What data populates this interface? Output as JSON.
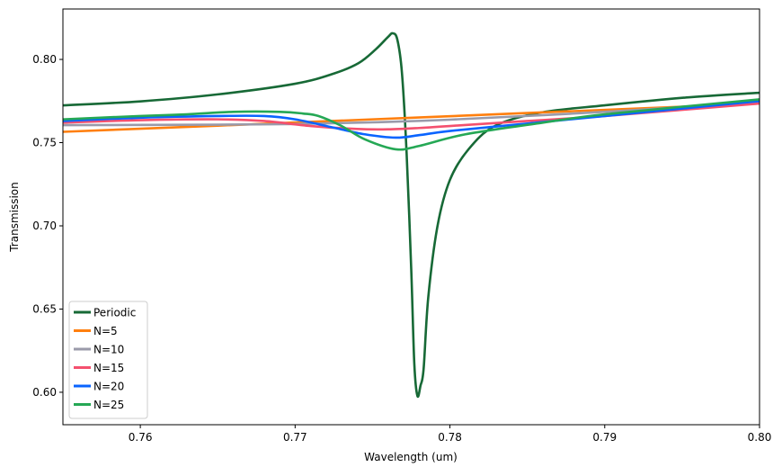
{
  "chart_data": {
    "type": "line",
    "title": "",
    "xlabel": "Wavelength (um)",
    "ylabel": "Transmission",
    "xlim": [
      0.755,
      0.8
    ],
    "ylim": [
      0.5805,
      0.8303
    ],
    "xticks": [
      0.76,
      0.77,
      0.78,
      0.79,
      0.8
    ],
    "xtick_labels": [
      "0.76",
      "0.77",
      "0.78",
      "0.79",
      "0.80"
    ],
    "yticks": [
      0.6,
      0.65,
      0.7,
      0.75,
      0.8
    ],
    "ytick_labels": [
      "0.60",
      "0.65",
      "0.70",
      "0.75",
      "0.80"
    ],
    "grid": false,
    "legend_position": "lower-left",
    "series": [
      {
        "name": "Periodic",
        "color": "#176936",
        "x": [
          0.755,
          0.76,
          0.765,
          0.77,
          0.7725,
          0.7741,
          0.7752,
          0.776,
          0.7763,
          0.7766,
          0.7769,
          0.7772,
          0.7775,
          0.7777,
          0.7779,
          0.7781,
          0.7783,
          0.7786,
          0.7792,
          0.78,
          0.7812,
          0.7829,
          0.7858,
          0.79,
          0.7951,
          0.8
        ],
        "y": [
          0.7724,
          0.7748,
          0.779,
          0.7854,
          0.7915,
          0.7978,
          0.806,
          0.8135,
          0.8157,
          0.812,
          0.792,
          0.744,
          0.674,
          0.617,
          0.5978,
          0.604,
          0.614,
          0.657,
          0.7,
          0.7276,
          0.746,
          0.76,
          0.768,
          0.7724,
          0.777,
          0.78
        ]
      },
      {
        "name": "N=5",
        "color": "#ff7f0e",
        "x": [
          0.755,
          0.765,
          0.775,
          0.785,
          0.8
        ],
        "y": [
          0.7565,
          0.7602,
          0.764,
          0.7678,
          0.7735
        ]
      },
      {
        "name": "N=10",
        "color": "#9a9aaa",
        "x": [
          0.755,
          0.765,
          0.77,
          0.775,
          0.78,
          0.79,
          0.8
        ],
        "y": [
          0.7605,
          0.7608,
          0.7612,
          0.7622,
          0.7638,
          0.7685,
          0.7745
        ]
      },
      {
        "name": "N=15",
        "color": "#f4506e",
        "x": [
          0.755,
          0.76,
          0.765,
          0.768,
          0.771,
          0.774,
          0.776,
          0.778,
          0.78,
          0.785,
          0.79,
          0.8
        ],
        "y": [
          0.762,
          0.7635,
          0.764,
          0.763,
          0.76,
          0.7582,
          0.758,
          0.7588,
          0.76,
          0.763,
          0.766,
          0.7735
        ]
      },
      {
        "name": "N=20",
        "color": "#0a64ff",
        "x": [
          0.755,
          0.76,
          0.765,
          0.768,
          0.77,
          0.7725,
          0.7745,
          0.7765,
          0.778,
          0.78,
          0.785,
          0.79,
          0.8
        ],
        "y": [
          0.763,
          0.765,
          0.766,
          0.766,
          0.764,
          0.759,
          0.755,
          0.753,
          0.7545,
          0.757,
          0.7615,
          0.766,
          0.775
        ]
      },
      {
        "name": "N=25",
        "color": "#25a855",
        "x": [
          0.755,
          0.76,
          0.763,
          0.766,
          0.769,
          0.7705,
          0.7715,
          0.773,
          0.7745,
          0.7765,
          0.778,
          0.781,
          0.786,
          0.79,
          0.8
        ],
        "y": [
          0.764,
          0.766,
          0.767,
          0.7685,
          0.7685,
          0.7675,
          0.766,
          0.76,
          0.752,
          0.746,
          0.748,
          0.755,
          0.762,
          0.767,
          0.776
        ]
      }
    ]
  }
}
